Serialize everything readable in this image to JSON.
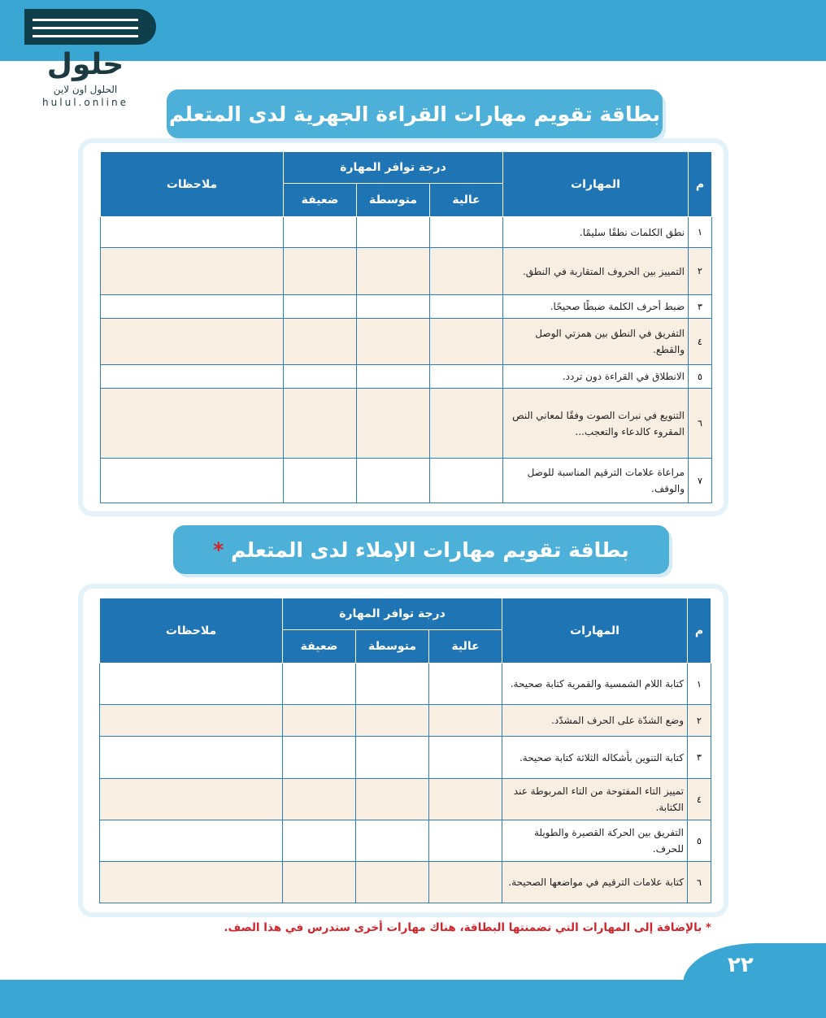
{
  "logo": {
    "text_ar": "الحلول اون لاين",
    "text_en": "hulul.online",
    "mark": "حلول"
  },
  "card1": {
    "title": "بطاقة تقويم مهارات القراءة الجهرية لدى المتعلم",
    "headers": {
      "num": "م",
      "skills": "المهارات",
      "degree": "درجة توافر المهارة",
      "high": "عالية",
      "medium": "متوسطة",
      "low": "ضعيفة",
      "notes": "ملاحظات"
    },
    "rows": [
      {
        "num": "١",
        "skill": "نطق الكلمات نطقًا سليمًا."
      },
      {
        "num": "٢",
        "skill": "التمييز بين الحروف المتقاربة في النطق."
      },
      {
        "num": "٣",
        "skill": "ضبط أحرف الكلمة ضبطًا صحيحًا."
      },
      {
        "num": "٤",
        "skill": "التفريق في النطق بين همزتي الوصل والقطع."
      },
      {
        "num": "٥",
        "skill": "الانطلاق في القراءة دون تردد."
      },
      {
        "num": "٦",
        "skill": "التنويع في نبرات الصوت وفقًا لمعاني النص المقروء كالدعاء والتعجب..."
      },
      {
        "num": "٧",
        "skill": "مراعاة علامات الترقيم المناسبة للوصل والوقف."
      }
    ]
  },
  "card2": {
    "title": "بطاقة تقويم مهارات الإملاء لدى المتعلم",
    "asterisk": "*",
    "headers": {
      "num": "م",
      "skills": "المهارات",
      "degree": "درجة توافر المهارة",
      "high": "عالية",
      "medium": "متوسطة",
      "low": "ضعيفة",
      "notes": "ملاحظات"
    },
    "rows": [
      {
        "num": "١",
        "skill": "كتابة اللام الشمسية والقمرية كتابة صحيحة."
      },
      {
        "num": "٢",
        "skill": "وضع الشدّة على الحرف المشدّد."
      },
      {
        "num": "٣",
        "skill": "كتابة التنوين بأشكاله الثلاثة كتابة صحيحة."
      },
      {
        "num": "٤",
        "skill": "تمييز التاء المفتوحة من التاء المربوطة عند الكتابة."
      },
      {
        "num": "٥",
        "skill": "التفريق بين الحركة القصيرة والطويلة للحرف."
      },
      {
        "num": "٦",
        "skill": "كتابة علامات الترقيم في مواضعها الصحيحة."
      }
    ]
  },
  "footnote": "* بالإضافة إلى المهارات التي تضمنتها البطاقة، هناك مهارات أخرى ستدرس في هذا الصف.",
  "page_number": "٢٢",
  "colors": {
    "header_blue": "#1f74b4",
    "banner_blue": "#4db0d8",
    "row_beige": "#f8eee2",
    "footnote_red": "#d2232a"
  }
}
